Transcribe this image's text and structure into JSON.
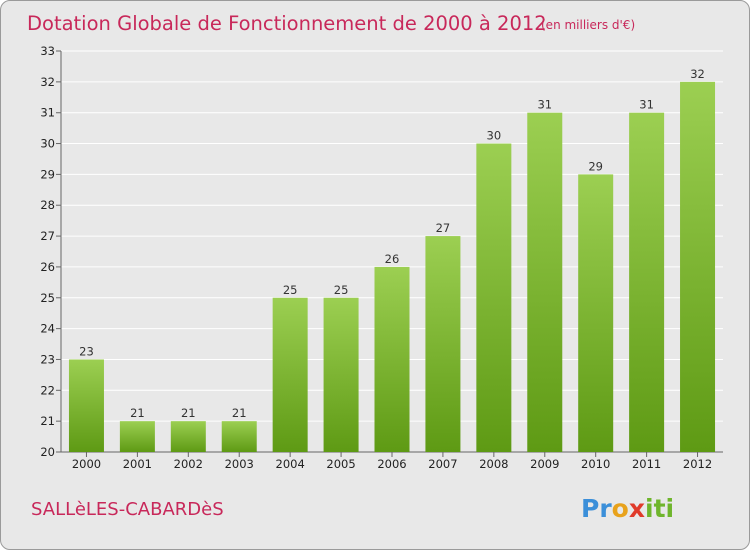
{
  "title": "Dotation Globale de Fonctionnement de 2000 à 2012",
  "unit_note": "(en milliers d'€)",
  "commune": "SALLèLES-CABARDèS",
  "logo": {
    "text": "Proxiti",
    "letters": [
      "P",
      "r",
      "o",
      "x",
      "i",
      "t",
      "i"
    ],
    "colors": [
      "#3b8fd9",
      "#3b8fd9",
      "#e8a21c",
      "#e03a2a",
      "#6fb52c",
      "#6fb52c",
      "#6fb52c"
    ]
  },
  "colors": {
    "accent": "#c8285a",
    "bar_top": "#9ccf52",
    "bar_bottom": "#5e9a14",
    "background": "#e8e8e8",
    "grid": "#ffffff"
  },
  "chart_data": {
    "type": "bar",
    "categories": [
      "2000",
      "2001",
      "2002",
      "2003",
      "2004",
      "2005",
      "2006",
      "2007",
      "2008",
      "2009",
      "2010",
      "2011",
      "2012"
    ],
    "values": [
      23,
      21,
      21,
      21,
      25,
      25,
      26,
      27,
      30,
      31,
      29,
      31,
      32
    ],
    "ylim": [
      20,
      33
    ],
    "yticks": [
      20,
      21,
      22,
      23,
      24,
      25,
      26,
      27,
      28,
      29,
      30,
      31,
      32,
      33
    ],
    "grid": true
  }
}
